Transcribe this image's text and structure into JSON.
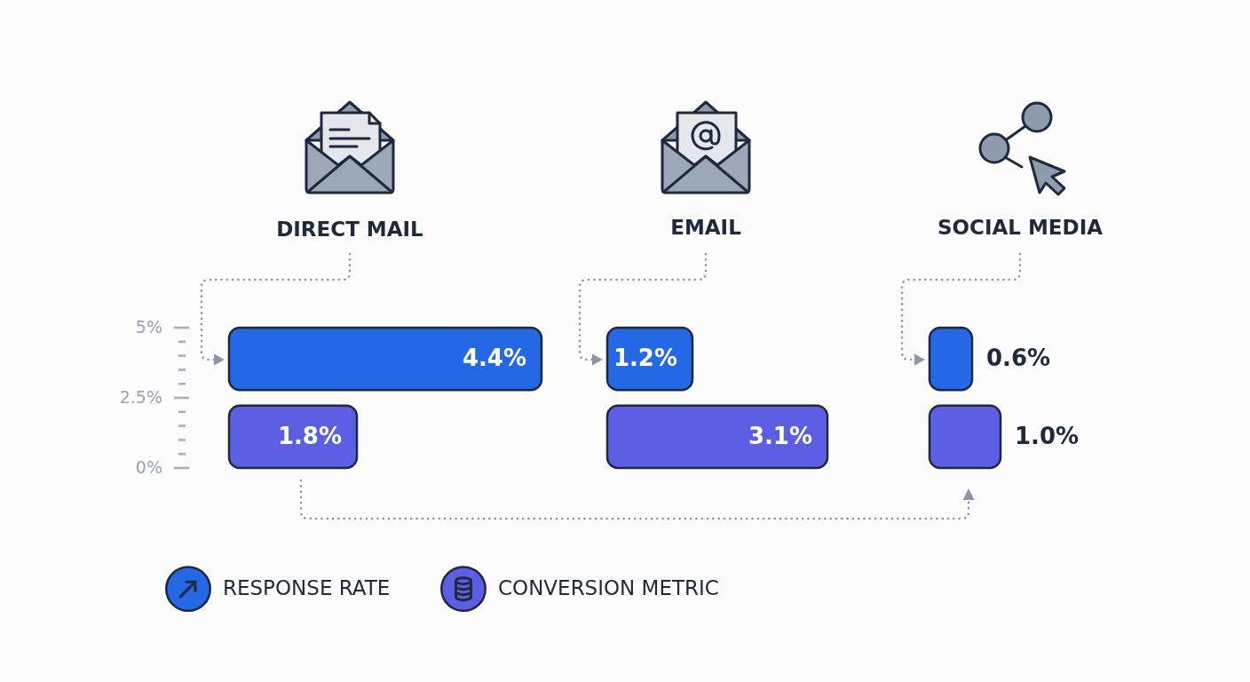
{
  "chart_data": [
    {
      "type": "bar",
      "orientation": "horizontal",
      "title": "DIRECT MAIL",
      "categories": [
        null
      ],
      "series": [
        {
          "color": "#2468e5",
          "values": [
            4.4
          ],
          "value_labels": [
            "4.4%"
          ]
        },
        {
          "color": "#5c5fe3",
          "values": [
            1.8
          ],
          "value_labels": [
            "1.8%"
          ]
        }
      ],
      "annotations": [
        "5%",
        "2.5%",
        "0%"
      ]
    },
    {
      "type": "bar",
      "orientation": "horizontal",
      "title": "EMAIL",
      "categories": [
        null
      ],
      "series": [
        {
          "name": "RESPONSE RATE",
          "color": "#2468e5",
          "values": [
            1.2
          ],
          "value_labels": [
            "1.2%"
          ]
        },
        {
          "name": "CONVERSION METRIC",
          "color": "#5c5fe3",
          "values": [
            3.1
          ],
          "value_labels": [
            "3.1%"
          ]
        }
      ],
      "legend": "bottom left"
    },
    {
      "type": "bar",
      "orientation": "horizontal",
      "title": "SOCIAL MEDIA",
      "categories": [
        null
      ],
      "series": [
        {
          "color": "#2468e5",
          "values": [
            0.6
          ],
          "value_labels": [
            "0.6%"
          ]
        },
        {
          "color": "#5c5fe3",
          "values": [
            1.0
          ],
          "value_labels": [
            "1.0%"
          ]
        }
      ]
    }
  ]
}
